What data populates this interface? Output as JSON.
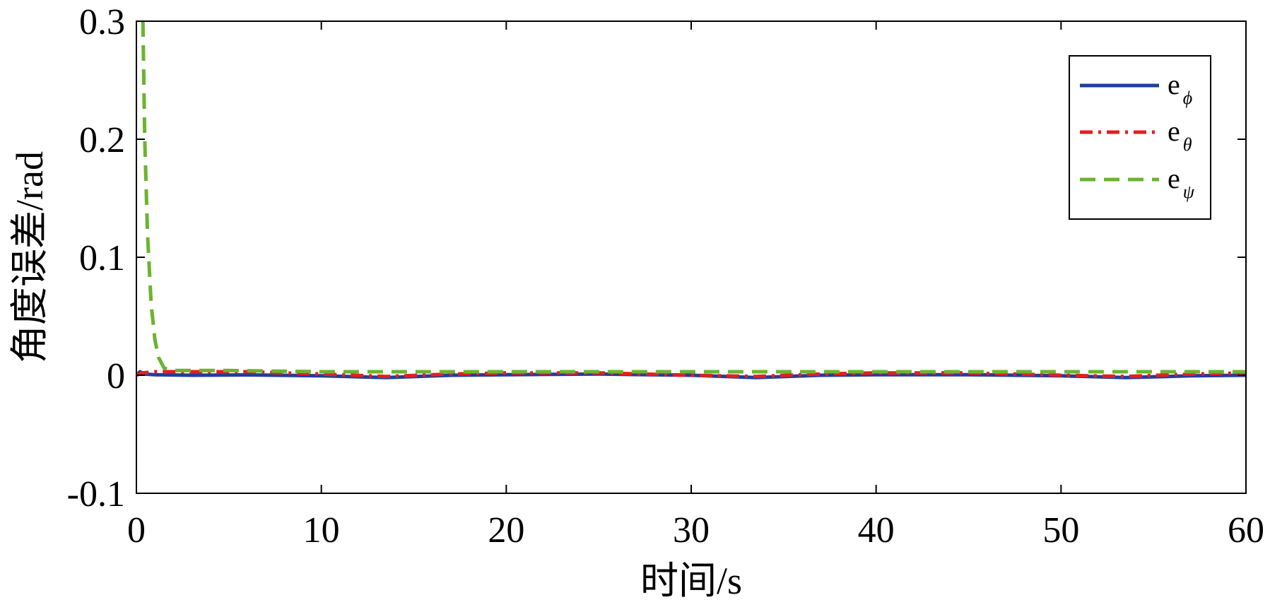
{
  "chart_data": {
    "type": "line",
    "xlabel": "时间/s",
    "ylabel": "角度误差/rad",
    "xlim": [
      0,
      60
    ],
    "ylim": [
      -0.1,
      0.3
    ],
    "xticks": [
      0,
      10,
      20,
      30,
      40,
      50,
      60
    ],
    "xtick_labels": [
      "0",
      "10",
      "20",
      "30",
      "40",
      "50",
      "60"
    ],
    "yticks": [
      -0.1,
      0,
      0.1,
      0.2,
      0.3
    ],
    "ytick_labels": [
      "-0.1",
      "0",
      "0.1",
      "0.2",
      "0.3"
    ],
    "grid": false,
    "legend_position": "top-right",
    "series": [
      {
        "name": "e",
        "subscript": "ϕ",
        "color": "#1f3f9a",
        "style": "solid",
        "x": [
          0,
          0.2,
          0.4,
          1,
          3,
          6,
          10,
          13.5,
          17,
          20,
          25,
          30,
          33.5,
          37,
          40,
          45,
          50,
          53.5,
          57,
          60
        ],
        "y": [
          0,
          0.003,
          0.001,
          0.0005,
          0.0,
          0.0003,
          -0.0005,
          -0.002,
          0.0,
          0.0005,
          0.001,
          0.0,
          -0.002,
          0.0,
          0.0005,
          0.0005,
          -0.0005,
          -0.002,
          -0.0005,
          0.0
        ]
      },
      {
        "name": "e",
        "subscript": "θ",
        "color": "#e02020",
        "style": "dashdot",
        "x": [
          0,
          0.3,
          1,
          3,
          6,
          10,
          13.5,
          17,
          20,
          25,
          30,
          33.5,
          37,
          40,
          45,
          50,
          53.5,
          57,
          60
        ],
        "y": [
          0,
          0.002,
          0.003,
          0.003,
          0.003,
          0.001,
          -0.001,
          0.001,
          0.002,
          0.002,
          0.0,
          -0.001,
          0.001,
          0.002,
          0.002,
          0.0,
          -0.001,
          0.001,
          0.002
        ]
      },
      {
        "name": "e",
        "subscript": "ψ",
        "color": "#6ab42f",
        "style": "dashed",
        "x": [
          0.35,
          0.45,
          0.6,
          0.8,
          1.0,
          1.2,
          1.5,
          2,
          3,
          5,
          10,
          20,
          30,
          40,
          50,
          60
        ],
        "y": [
          0.3,
          0.2,
          0.12,
          0.06,
          0.03,
          0.015,
          0.006,
          0.004,
          0.004,
          0.004,
          0.003,
          0.003,
          0.003,
          0.003,
          0.003,
          0.003
        ]
      }
    ]
  }
}
